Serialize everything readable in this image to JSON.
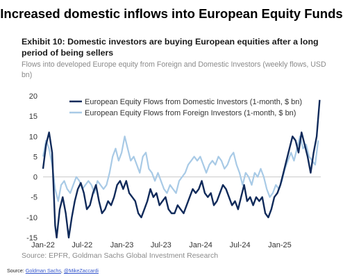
{
  "headline": "Increased domestic inflows into European Equity Funds",
  "exhibit_title": "Exhibit 10: Domestic investors are buying European equities after a long period of being sellers",
  "subtitle": "Flows into developed Europe equity from Foreign and Domestic Investors (weekly flows, USD bn)",
  "source_line": "Source: EPFR, Goldman Sachs Global Investment Research",
  "credit": {
    "prefix": "Source:",
    "link1": "Goldman Sachs",
    "separator": ",",
    "link2": "@MikeZaccardi"
  },
  "colors": {
    "domestic": "#102a5a",
    "foreign": "#a8cae6",
    "zero_line": "#c8c8c8"
  },
  "chart_data": {
    "type": "line",
    "title": "",
    "xlabel": "",
    "ylabel": "",
    "ylim": [
      -15,
      20
    ],
    "yticks": [
      -15,
      -10,
      -5,
      0,
      5,
      10,
      15,
      20
    ],
    "xlim": [
      "2022-01-01",
      "2025-07-10"
    ],
    "xticks": [
      {
        "date": "2022-01-01",
        "label": "Jan-22"
      },
      {
        "date": "2022-07-01",
        "label": "Jul-22"
      },
      {
        "date": "2023-01-01",
        "label": "Jan-23"
      },
      {
        "date": "2023-07-01",
        "label": "Jul-23"
      },
      {
        "date": "2024-01-01",
        "label": "Jan-24"
      },
      {
        "date": "2024-07-01",
        "label": "Jul-24"
      },
      {
        "date": "2025-01-01",
        "label": "Jan-25"
      }
    ],
    "legend_position": "top-right",
    "series": [
      {
        "name": "European Equity Flows from Domestic Investors (1-month, $ bn)",
        "color": "#102a5a",
        "points": [
          [
            "2022-01-01",
            2
          ],
          [
            "2022-01-15",
            8
          ],
          [
            "2022-01-29",
            11
          ],
          [
            "2022-02-12",
            6
          ],
          [
            "2022-02-26",
            -12
          ],
          [
            "2022-03-05",
            -15
          ],
          [
            "2022-03-19",
            -8
          ],
          [
            "2022-04-02",
            -5
          ],
          [
            "2022-04-16",
            -9
          ],
          [
            "2022-04-30",
            -15
          ],
          [
            "2022-05-14",
            -10
          ],
          [
            "2022-05-28",
            -6
          ],
          [
            "2022-06-11",
            -3
          ],
          [
            "2022-06-25",
            -1.5
          ],
          [
            "2022-07-09",
            -4
          ],
          [
            "2022-07-23",
            -8
          ],
          [
            "2022-08-06",
            -7
          ],
          [
            "2022-08-20",
            -4
          ],
          [
            "2022-09-03",
            -2
          ],
          [
            "2022-09-17",
            -6
          ],
          [
            "2022-10-01",
            -9
          ],
          [
            "2022-10-15",
            -8
          ],
          [
            "2022-10-29",
            -6
          ],
          [
            "2022-11-12",
            -7
          ],
          [
            "2022-11-26",
            -5
          ],
          [
            "2022-12-10",
            -2
          ],
          [
            "2022-12-24",
            -1
          ],
          [
            "2023-01-07",
            -3
          ],
          [
            "2023-01-21",
            -1
          ],
          [
            "2023-02-04",
            -4
          ],
          [
            "2023-02-18",
            -5
          ],
          [
            "2023-03-04",
            -6
          ],
          [
            "2023-03-18",
            -9
          ],
          [
            "2023-04-01",
            -10
          ],
          [
            "2023-04-15",
            -8
          ],
          [
            "2023-04-29",
            -6
          ],
          [
            "2023-05-13",
            -3
          ],
          [
            "2023-05-27",
            -5
          ],
          [
            "2023-06-10",
            -4
          ],
          [
            "2023-06-24",
            -7
          ],
          [
            "2023-07-08",
            -6
          ],
          [
            "2023-07-22",
            -5
          ],
          [
            "2023-08-05",
            -8
          ],
          [
            "2023-08-19",
            -9
          ],
          [
            "2023-09-02",
            -9
          ],
          [
            "2023-09-16",
            -7
          ],
          [
            "2023-09-30",
            -8
          ],
          [
            "2023-10-14",
            -9
          ],
          [
            "2023-10-28",
            -7
          ],
          [
            "2023-11-11",
            -5
          ],
          [
            "2023-11-25",
            -3
          ],
          [
            "2023-12-09",
            -4
          ],
          [
            "2023-12-23",
            -3
          ],
          [
            "2024-01-06",
            -1
          ],
          [
            "2024-01-20",
            -4
          ],
          [
            "2024-02-03",
            -5
          ],
          [
            "2024-02-17",
            -4
          ],
          [
            "2024-03-02",
            -7
          ],
          [
            "2024-03-16",
            -6
          ],
          [
            "2024-03-30",
            -4
          ],
          [
            "2024-04-13",
            -2
          ],
          [
            "2024-04-27",
            -3
          ],
          [
            "2024-05-11",
            -5
          ],
          [
            "2024-05-25",
            -7
          ],
          [
            "2024-06-08",
            -6
          ],
          [
            "2024-06-22",
            -8
          ],
          [
            "2024-07-06",
            -5
          ],
          [
            "2024-07-20",
            -2
          ],
          [
            "2024-08-03",
            -6
          ],
          [
            "2024-08-17",
            -5
          ],
          [
            "2024-08-31",
            -7
          ],
          [
            "2024-09-14",
            -5
          ],
          [
            "2024-09-28",
            -6
          ],
          [
            "2024-10-12",
            -5
          ],
          [
            "2024-10-26",
            -9
          ],
          [
            "2024-11-09",
            -10
          ],
          [
            "2024-11-23",
            -8
          ],
          [
            "2024-12-07",
            -5
          ],
          [
            "2024-12-21",
            -4
          ],
          [
            "2025-01-04",
            -2
          ],
          [
            "2025-01-18",
            1
          ],
          [
            "2025-02-01",
            4
          ],
          [
            "2025-02-15",
            7
          ],
          [
            "2025-03-01",
            10
          ],
          [
            "2025-03-15",
            9
          ],
          [
            "2025-03-29",
            6
          ],
          [
            "2025-04-12",
            11
          ],
          [
            "2025-04-26",
            8
          ],
          [
            "2025-05-10",
            5
          ],
          [
            "2025-05-24",
            1
          ],
          [
            "2025-06-07",
            6
          ],
          [
            "2025-06-21",
            10
          ],
          [
            "2025-07-05",
            19
          ]
        ]
      },
      {
        "name": "European Equity Flows from Foreign Investors (1-month, $ bn)",
        "color": "#a8cae6",
        "points": [
          [
            "2022-01-01",
            5
          ],
          [
            "2022-01-15",
            9
          ],
          [
            "2022-01-29",
            7
          ],
          [
            "2022-02-12",
            3
          ],
          [
            "2022-02-26",
            -3
          ],
          [
            "2022-03-12",
            -6
          ],
          [
            "2022-03-26",
            -2
          ],
          [
            "2022-04-09",
            -1
          ],
          [
            "2022-04-23",
            -3
          ],
          [
            "2022-05-07",
            -4
          ],
          [
            "2022-05-21",
            -2
          ],
          [
            "2022-06-04",
            0
          ],
          [
            "2022-06-18",
            -1
          ],
          [
            "2022-07-02",
            -3
          ],
          [
            "2022-07-16",
            -2
          ],
          [
            "2022-07-30",
            -1
          ],
          [
            "2022-08-13",
            -2
          ],
          [
            "2022-08-27",
            -4
          ],
          [
            "2022-09-10",
            -1
          ],
          [
            "2022-09-24",
            -2
          ],
          [
            "2022-10-08",
            -3
          ],
          [
            "2022-10-22",
            -2
          ],
          [
            "2022-11-05",
            1
          ],
          [
            "2022-11-19",
            5
          ],
          [
            "2022-12-03",
            7
          ],
          [
            "2022-12-17",
            4
          ],
          [
            "2022-12-31",
            6
          ],
          [
            "2023-01-14",
            10
          ],
          [
            "2023-01-28",
            7
          ],
          [
            "2023-02-11",
            4
          ],
          [
            "2023-02-25",
            5
          ],
          [
            "2023-03-11",
            3
          ],
          [
            "2023-03-25",
            1
          ],
          [
            "2023-04-08",
            5
          ],
          [
            "2023-04-22",
            6
          ],
          [
            "2023-05-06",
            2
          ],
          [
            "2023-05-20",
            1
          ],
          [
            "2023-06-03",
            -1
          ],
          [
            "2023-06-17",
            1
          ],
          [
            "2023-07-01",
            -1
          ],
          [
            "2023-07-15",
            -3
          ],
          [
            "2023-07-29",
            -4
          ],
          [
            "2023-08-12",
            -2
          ],
          [
            "2023-08-26",
            -3
          ],
          [
            "2023-09-09",
            -4
          ],
          [
            "2023-09-23",
            -1
          ],
          [
            "2023-10-07",
            0
          ],
          [
            "2023-10-21",
            1
          ],
          [
            "2023-11-04",
            3
          ],
          [
            "2023-11-18",
            4
          ],
          [
            "2023-12-02",
            5
          ],
          [
            "2023-12-16",
            4
          ],
          [
            "2023-12-30",
            5
          ],
          [
            "2024-01-13",
            3
          ],
          [
            "2024-01-27",
            1
          ],
          [
            "2024-02-10",
            3
          ],
          [
            "2024-02-24",
            4
          ],
          [
            "2024-03-09",
            3
          ],
          [
            "2024-03-23",
            5
          ],
          [
            "2024-04-06",
            4
          ],
          [
            "2024-04-20",
            2
          ],
          [
            "2024-05-04",
            3
          ],
          [
            "2024-05-18",
            5
          ],
          [
            "2024-06-01",
            6
          ],
          [
            "2024-06-15",
            3
          ],
          [
            "2024-06-29",
            1
          ],
          [
            "2024-07-13",
            -2
          ],
          [
            "2024-07-27",
            1
          ],
          [
            "2024-08-10",
            0
          ],
          [
            "2024-08-24",
            -2
          ],
          [
            "2024-09-07",
            1
          ],
          [
            "2024-09-21",
            0
          ],
          [
            "2024-10-05",
            2
          ],
          [
            "2024-10-19",
            0
          ],
          [
            "2024-11-02",
            -3
          ],
          [
            "2024-11-16",
            -5
          ],
          [
            "2024-11-30",
            -4
          ],
          [
            "2024-12-14",
            -2
          ],
          [
            "2024-12-28",
            -3
          ],
          [
            "2025-01-11",
            -1
          ],
          [
            "2025-01-25",
            2
          ],
          [
            "2025-02-08",
            4
          ],
          [
            "2025-02-22",
            6
          ],
          [
            "2025-03-08",
            4
          ],
          [
            "2025-03-22",
            7
          ],
          [
            "2025-04-05",
            10
          ],
          [
            "2025-04-19",
            7
          ],
          [
            "2025-05-03",
            8
          ],
          [
            "2025-05-17",
            5
          ],
          [
            "2025-05-31",
            4
          ],
          [
            "2025-06-14",
            3
          ],
          [
            "2025-06-28",
            9
          ]
        ]
      }
    ]
  }
}
